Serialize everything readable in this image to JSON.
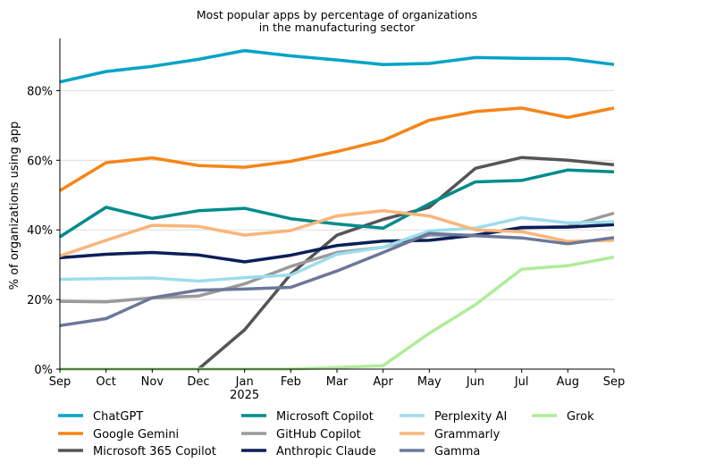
{
  "chart_data": {
    "type": "line",
    "title_lines": [
      "Most popular apps by percentage of organizations",
      "in the manufacturing sector"
    ],
    "xlabel": "",
    "ylabel": "% of organizations using app",
    "categories": [
      "Sep",
      "Oct",
      "Nov",
      "Dec",
      "Jan",
      "Feb",
      "Mar",
      "Apr",
      "May",
      "Jun",
      "Jul",
      "Aug",
      "Sep"
    ],
    "year_label": "2025",
    "year_label_index": 4,
    "ylim": [
      0,
      95
    ],
    "yticks": [
      0,
      20,
      40,
      60,
      80
    ],
    "ytick_labels": [
      "0%",
      "20%",
      "40%",
      "60%",
      "80%"
    ],
    "grid": true,
    "legend_position": "bottom",
    "series": [
      {
        "name": "ChatGPT",
        "color": "#00a3c7",
        "values": [
          82.5,
          85.5,
          87,
          89,
          91.5,
          90,
          88.8,
          87.5,
          87.8,
          89.5,
          89.3,
          89.2,
          87.5
        ]
      },
      {
        "name": "Google Gemini",
        "color": "#f58518",
        "values": [
          51.3,
          59.3,
          60.7,
          58.5,
          58,
          59.7,
          62.5,
          65.7,
          71.5,
          74,
          75,
          72.3,
          75
        ]
      },
      {
        "name": "Microsoft 365 Copilot",
        "color": "#555555",
        "values": [
          null,
          null,
          null,
          0,
          11.3,
          27.3,
          38.5,
          43,
          46.5,
          57.7,
          60.8,
          60,
          58.7
        ]
      },
      {
        "name": "Microsoft Copilot",
        "color": "#008b8b",
        "values": [
          38,
          46.5,
          43.3,
          45.5,
          46.2,
          43.2,
          41.7,
          40.5,
          47.5,
          53.8,
          54.2,
          57.2,
          56.7
        ]
      },
      {
        "name": "GitHub Copilot",
        "color": "#9a9a9a",
        "values": [
          19.5,
          19.3,
          20.5,
          21,
          24.5,
          29.5,
          33.5,
          35,
          38.5,
          38.5,
          40.5,
          41,
          44.8
        ]
      },
      {
        "name": "Anthropic Claude",
        "color": "#0b1f58",
        "values": [
          32,
          33,
          33.5,
          32.8,
          30.8,
          32.7,
          35.5,
          36.8,
          37,
          38.5,
          40.7,
          40.8,
          41.5
        ]
      },
      {
        "name": "Perplexity AI",
        "color": "#9ddcec",
        "values": [
          25.8,
          26,
          26.2,
          25.3,
          26.3,
          27,
          33,
          35,
          39.7,
          40.5,
          43.5,
          42,
          42.3
        ]
      },
      {
        "name": "Grammarly",
        "color": "#f9b57a",
        "values": [
          32.5,
          37,
          41.3,
          41,
          38.5,
          39.8,
          44,
          45.5,
          44,
          40,
          39.5,
          36.7,
          37
        ]
      },
      {
        "name": "Gamma",
        "color": "#6b7899",
        "values": [
          12.5,
          14.5,
          20.5,
          22.7,
          23,
          23.5,
          28.2,
          33.5,
          39,
          38.3,
          37.7,
          36,
          37.8
        ]
      },
      {
        "name": "Grok",
        "color": "#b0ec9a",
        "values": [
          0,
          0,
          0,
          0,
          0,
          0,
          0.5,
          1,
          10.3,
          18.5,
          28.7,
          29.7,
          32.2
        ]
      }
    ]
  }
}
